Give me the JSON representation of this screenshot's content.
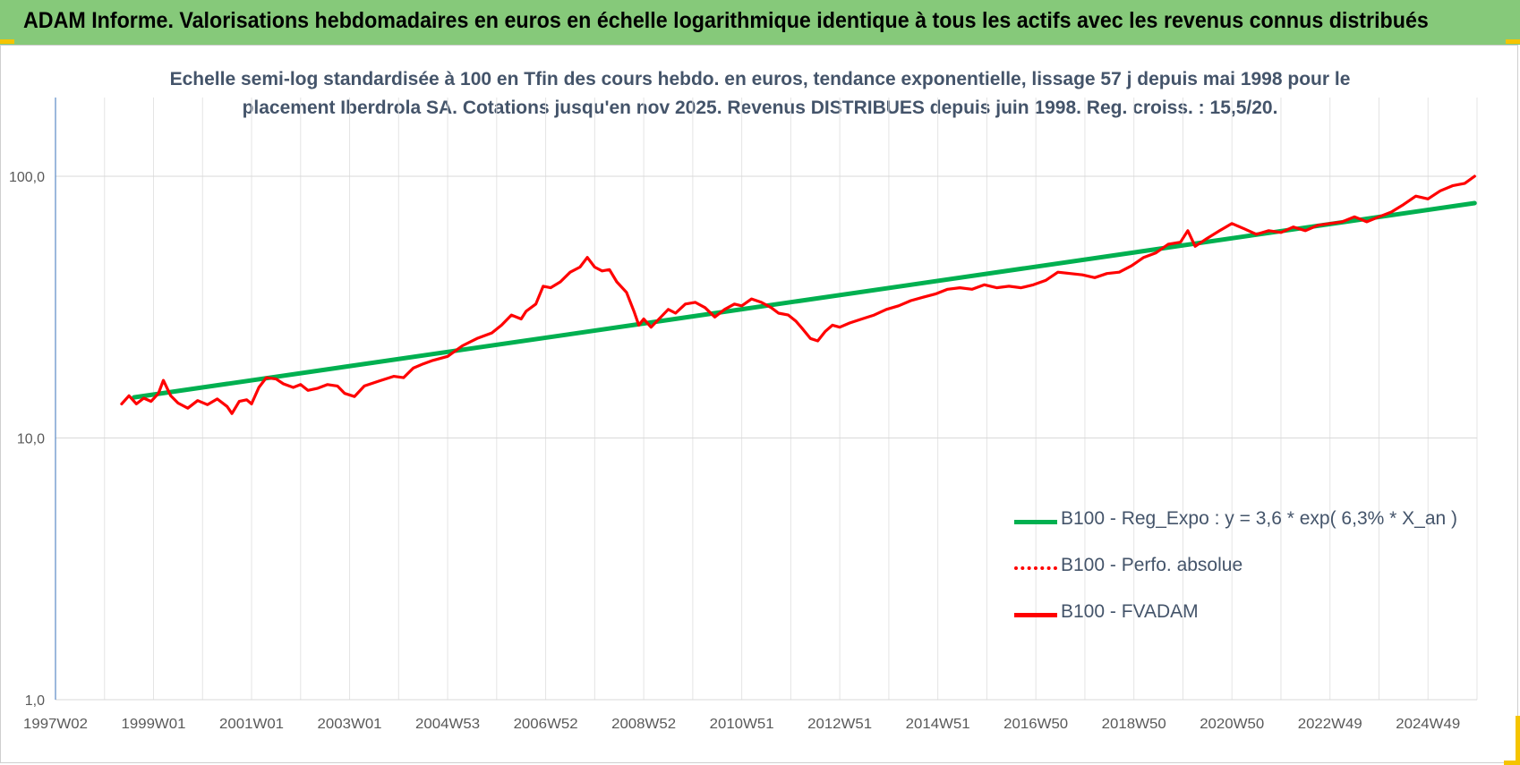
{
  "header": {
    "title": "ADAM Informe. Valorisations hebdomadaires en euros en échelle logarithmique identique à tous les actifs avec les revenus connus distribués",
    "background_color": "#86c97a",
    "corner_color": "#f5c400"
  },
  "chart_data": {
    "type": "line",
    "title_line1": "Echelle semi-log standardisée à 100 en Tfin des cours hebdo. en euros, tendance exponentielle, lissage 57 j depuis mai 1998 pour le",
    "title_line2": "placement Iberdrola SA. Cotations jusqu'en nov 2025. Revenus DISTRIBUES depuis juin 1998. Reg. croiss. : 15,5/20.",
    "y_scale": "log",
    "ylim": [
      1,
      200
    ],
    "y_ticks": [
      {
        "value": 1,
        "label": "1,0"
      },
      {
        "value": 10,
        "label": "10,0"
      },
      {
        "value": 100,
        "label": "100,0"
      }
    ],
    "xlim": [
      1997.0,
      2026.0
    ],
    "x_ticks": [
      {
        "value": 1997.0,
        "label": "1997W02"
      },
      {
        "value": 1999.0,
        "label": "1999W01"
      },
      {
        "value": 2001.0,
        "label": "2001W01"
      },
      {
        "value": 2003.0,
        "label": "2003W01"
      },
      {
        "value": 2005.0,
        "label": "2004W53"
      },
      {
        "value": 2007.0,
        "label": "2006W52"
      },
      {
        "value": 2009.0,
        "label": "2008W52"
      },
      {
        "value": 2011.0,
        "label": "2010W51"
      },
      {
        "value": 2013.0,
        "label": "2012W51"
      },
      {
        "value": 2015.0,
        "label": "2014W51"
      },
      {
        "value": 2017.0,
        "label": "2016W50"
      },
      {
        "value": 2019.0,
        "label": "2018W50"
      },
      {
        "value": 2021.0,
        "label": "2020W50"
      },
      {
        "value": 2023.0,
        "label": "2022W49"
      },
      {
        "value": 2025.0,
        "label": "2024W49"
      }
    ],
    "grid": true,
    "legend_position": "lower-right",
    "series": [
      {
        "name": "B100 - Reg_Expo : y = 3,6 * exp( 6,3% *  X_an )",
        "color": "#00b050",
        "style": "solid",
        "points": [
          [
            1998.6,
            14.3
          ],
          [
            2025.95,
            79
          ]
        ]
      },
      {
        "name": "B100 - Perfo. absolue",
        "color": "#ff0000",
        "style": "dotted",
        "points": []
      },
      {
        "name": "B100 - FVADAM",
        "color": "#ff0000",
        "style": "solid",
        "points": [
          [
            1998.35,
            13.5
          ],
          [
            1998.5,
            14.5
          ],
          [
            1998.65,
            13.5
          ],
          [
            1998.8,
            14.2
          ],
          [
            1998.95,
            13.8
          ],
          [
            1999.1,
            14.8
          ],
          [
            1999.2,
            16.6
          ],
          [
            1999.35,
            14.5
          ],
          [
            1999.5,
            13.6
          ],
          [
            1999.7,
            13.0
          ],
          [
            1999.9,
            13.9
          ],
          [
            2000.1,
            13.4
          ],
          [
            2000.3,
            14.1
          ],
          [
            2000.5,
            13.2
          ],
          [
            2000.6,
            12.4
          ],
          [
            2000.75,
            13.8
          ],
          [
            2000.9,
            14.0
          ],
          [
            2001.0,
            13.5
          ],
          [
            2001.15,
            15.6
          ],
          [
            2001.3,
            17.0
          ],
          [
            2001.5,
            16.8
          ],
          [
            2001.65,
            16.1
          ],
          [
            2001.85,
            15.6
          ],
          [
            2002.0,
            16.0
          ],
          [
            2002.15,
            15.2
          ],
          [
            2002.35,
            15.5
          ],
          [
            2002.55,
            16.0
          ],
          [
            2002.75,
            15.8
          ],
          [
            2002.9,
            14.8
          ],
          [
            2003.1,
            14.4
          ],
          [
            2003.3,
            15.8
          ],
          [
            2003.6,
            16.5
          ],
          [
            2003.9,
            17.2
          ],
          [
            2004.1,
            17.0
          ],
          [
            2004.3,
            18.5
          ],
          [
            2004.5,
            19.2
          ],
          [
            2004.7,
            19.8
          ],
          [
            2005.0,
            20.5
          ],
          [
            2005.3,
            22.5
          ],
          [
            2005.6,
            24.0
          ],
          [
            2005.9,
            25.2
          ],
          [
            2006.1,
            27.0
          ],
          [
            2006.3,
            29.5
          ],
          [
            2006.5,
            28.5
          ],
          [
            2006.6,
            30.5
          ],
          [
            2006.8,
            32.5
          ],
          [
            2006.95,
            38.0
          ],
          [
            2007.1,
            37.5
          ],
          [
            2007.3,
            39.5
          ],
          [
            2007.5,
            43.0
          ],
          [
            2007.7,
            45.0
          ],
          [
            2007.85,
            49.0
          ],
          [
            2008.0,
            45.0
          ],
          [
            2008.15,
            43.5
          ],
          [
            2008.3,
            44.0
          ],
          [
            2008.45,
            39.5
          ],
          [
            2008.65,
            36.0
          ],
          [
            2008.8,
            30.5
          ],
          [
            2008.9,
            27.0
          ],
          [
            2009.0,
            28.5
          ],
          [
            2009.15,
            26.5
          ],
          [
            2009.35,
            29.0
          ],
          [
            2009.5,
            31.0
          ],
          [
            2009.65,
            30.0
          ],
          [
            2009.85,
            32.5
          ],
          [
            2010.05,
            33.0
          ],
          [
            2010.25,
            31.5
          ],
          [
            2010.45,
            29.0
          ],
          [
            2010.65,
            31.0
          ],
          [
            2010.85,
            32.5
          ],
          [
            2011.0,
            32.0
          ],
          [
            2011.2,
            34.0
          ],
          [
            2011.4,
            33.0
          ],
          [
            2011.6,
            31.5
          ],
          [
            2011.75,
            30.0
          ],
          [
            2011.95,
            29.5
          ],
          [
            2012.1,
            28.0
          ],
          [
            2012.25,
            26.0
          ],
          [
            2012.4,
            24.0
          ],
          [
            2012.55,
            23.5
          ],
          [
            2012.7,
            25.5
          ],
          [
            2012.85,
            27.0
          ],
          [
            2013.0,
            26.5
          ],
          [
            2013.2,
            27.5
          ],
          [
            2013.45,
            28.5
          ],
          [
            2013.7,
            29.5
          ],
          [
            2013.95,
            31.0
          ],
          [
            2014.2,
            32.0
          ],
          [
            2014.45,
            33.5
          ],
          [
            2014.7,
            34.5
          ],
          [
            2014.95,
            35.5
          ],
          [
            2015.2,
            37.0
          ],
          [
            2015.45,
            37.5
          ],
          [
            2015.7,
            37.0
          ],
          [
            2015.95,
            38.5
          ],
          [
            2016.2,
            37.5
          ],
          [
            2016.45,
            38.0
          ],
          [
            2016.7,
            37.5
          ],
          [
            2016.95,
            38.5
          ],
          [
            2017.2,
            40.0
          ],
          [
            2017.45,
            43.0
          ],
          [
            2017.7,
            42.5
          ],
          [
            2017.95,
            42.0
          ],
          [
            2018.2,
            41.0
          ],
          [
            2018.45,
            42.5
          ],
          [
            2018.7,
            43.0
          ],
          [
            2018.95,
            45.5
          ],
          [
            2019.2,
            49.0
          ],
          [
            2019.45,
            51.0
          ],
          [
            2019.7,
            55.0
          ],
          [
            2019.95,
            56.0
          ],
          [
            2020.1,
            62.0
          ],
          [
            2020.25,
            54.0
          ],
          [
            2020.5,
            58.0
          ],
          [
            2020.75,
            62.0
          ],
          [
            2021.0,
            66.0
          ],
          [
            2021.25,
            63.0
          ],
          [
            2021.5,
            60.0
          ],
          [
            2021.75,
            62.0
          ],
          [
            2022.0,
            61.0
          ],
          [
            2022.25,
            64.0
          ],
          [
            2022.5,
            62.0
          ],
          [
            2022.75,
            65.0
          ],
          [
            2023.0,
            66.0
          ],
          [
            2023.25,
            67.0
          ],
          [
            2023.5,
            70.0
          ],
          [
            2023.75,
            67.0
          ],
          [
            2024.0,
            70.0
          ],
          [
            2024.25,
            73.0
          ],
          [
            2024.5,
            78.0
          ],
          [
            2024.75,
            84.0
          ],
          [
            2025.0,
            82.0
          ],
          [
            2025.25,
            88.0
          ],
          [
            2025.5,
            92.0
          ],
          [
            2025.75,
            94.0
          ],
          [
            2025.95,
            100.0
          ]
        ]
      }
    ]
  }
}
